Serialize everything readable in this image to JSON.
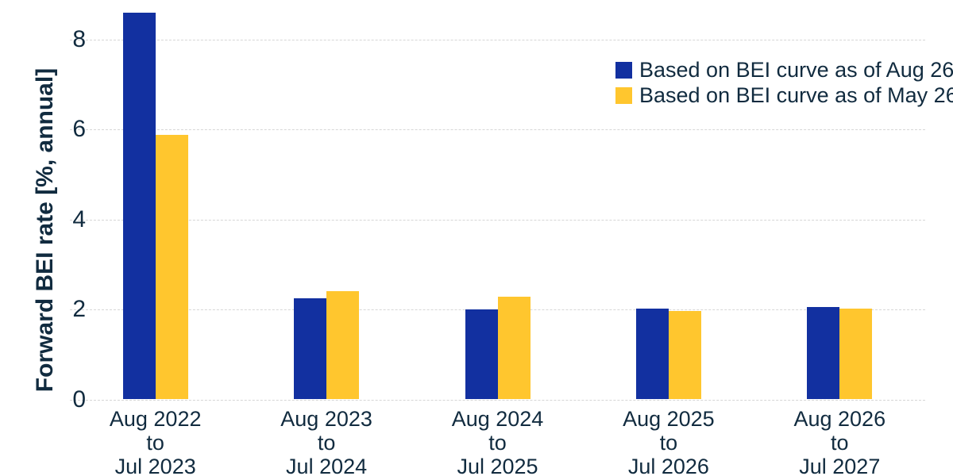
{
  "colors": {
    "series_aug_blue": "#1230A0",
    "series_may_yellow": "#FFC62E",
    "text_navy": "#112B3F",
    "gridline_gray": "#D6D6D6"
  },
  "chart_data": {
    "type": "bar",
    "title": "",
    "ylabel": "Forward BEI rate [%, annual]",
    "xlabel": "",
    "yticks": [
      0,
      2,
      4,
      6,
      8
    ],
    "ylim": [
      0,
      8.8
    ],
    "grid": "horizontal dashed",
    "legend_position": "top-right",
    "categories": [
      [
        "Aug 2022",
        "to",
        "Jul 2023"
      ],
      [
        "Aug 2023",
        "to",
        "Jul 2024"
      ],
      [
        "Aug 2024",
        "to",
        "Jul 2025"
      ],
      [
        "Aug 2025",
        "to",
        "Jul 2026"
      ],
      [
        "Aug 2026",
        "to",
        "Jul 2027"
      ]
    ],
    "series": [
      {
        "name": "Based on BEI curve as of Aug 26",
        "color": "#1230A0",
        "values": [
          8.6,
          2.25,
          2.01,
          2.02,
          2.06
        ]
      },
      {
        "name": "Based on BEI curve as of May 26",
        "color": "#FFC62E",
        "values": [
          5.88,
          2.4,
          2.29,
          1.97,
          2.02
        ]
      }
    ]
  }
}
